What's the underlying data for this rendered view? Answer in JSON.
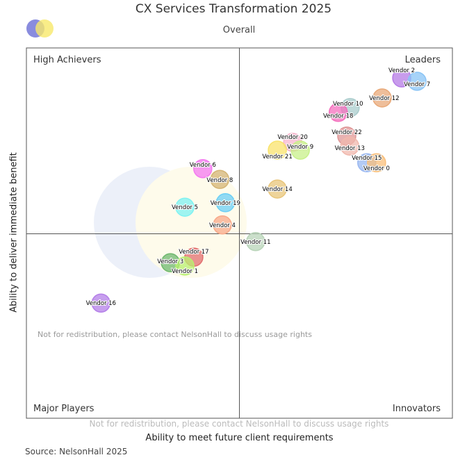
{
  "title": "CX Services Transformation 2025",
  "subtitle": "Overall",
  "source": "Source: NelsonHall 2025",
  "logo_text": "NelsonHall",
  "watermark": "Not for redistribution, please contact NelsonHall to discuss usage rights",
  "chart_data": {
    "type": "scatter",
    "title": "CX Services Transformation 2025",
    "subtitle": "Overall",
    "xlabel": "Ability to meet future client requirements",
    "ylabel": "Ability to deliver immediate benefit",
    "xlim": [
      0,
      10
    ],
    "ylim": [
      0,
      10
    ],
    "grid": false,
    "quadrants": {
      "top_left": "High Achievers",
      "top_right": "Leaders",
      "bottom_left": "Major Players",
      "bottom_right": "Innovators"
    },
    "points": [
      {
        "name": "Vendor 2",
        "x": 8.81,
        "y": 9.19,
        "color": "#b57be6"
      },
      {
        "name": "Vendor 7",
        "x": 9.17,
        "y": 9.1,
        "color": "#8ac4f5"
      },
      {
        "name": "Vendor 12",
        "x": 8.35,
        "y": 8.65,
        "color": "#e8a878"
      },
      {
        "name": "Vendor 10",
        "x": 7.6,
        "y": 8.39,
        "color": "#a9cccc"
      },
      {
        "name": "Vendor 18",
        "x": 7.32,
        "y": 8.26,
        "color": "#f46fbd"
      },
      {
        "name": "Vendor 22",
        "x": 7.52,
        "y": 7.62,
        "color": "#df9797"
      },
      {
        "name": "Vendor 13",
        "x": 7.59,
        "y": 7.35,
        "color": "#f0b8ad"
      },
      {
        "name": "Vendor 20",
        "x": 6.25,
        "y": 7.45,
        "color": "#f7b6cd"
      },
      {
        "name": "Vendor 9",
        "x": 6.43,
        "y": 7.24,
        "color": "#c8f08a"
      },
      {
        "name": "Vendor 21",
        "x": 5.89,
        "y": 7.24,
        "color": "#f9e36c"
      },
      {
        "name": "Vendor 15",
        "x": 7.99,
        "y": 6.9,
        "color": "#9ab8f0"
      },
      {
        "name": "Vendor 0",
        "x": 8.22,
        "y": 6.9,
        "color": "#f9bf7b"
      },
      {
        "name": "Vendor 6",
        "x": 4.14,
        "y": 6.74,
        "color": "#f47af0"
      },
      {
        "name": "Vendor 8",
        "x": 4.54,
        "y": 6.45,
        "color": "#d4b474"
      },
      {
        "name": "Vendor 14",
        "x": 5.89,
        "y": 6.19,
        "color": "#e8c57a"
      },
      {
        "name": "Vendor 19",
        "x": 4.67,
        "y": 5.82,
        "color": "#6ccff5"
      },
      {
        "name": "Vendor 5",
        "x": 3.72,
        "y": 5.7,
        "color": "#7ff2f2"
      },
      {
        "name": "Vendor 4",
        "x": 4.6,
        "y": 5.22,
        "color": "#f8a98a"
      },
      {
        "name": "Vendor 11",
        "x": 5.38,
        "y": 4.77,
        "color": "#b8d4b8"
      },
      {
        "name": "Vendor 17",
        "x": 3.93,
        "y": 4.35,
        "color": "#e27070"
      },
      {
        "name": "Vendor 3",
        "x": 3.38,
        "y": 4.2,
        "color": "#6fb86f"
      },
      {
        "name": "Vendor 1",
        "x": 3.72,
        "y": 4.11,
        "color": "#b8f070"
      },
      {
        "name": "Vendor 16",
        "x": 1.75,
        "y": 3.11,
        "color": "#b47fe8"
      }
    ]
  }
}
